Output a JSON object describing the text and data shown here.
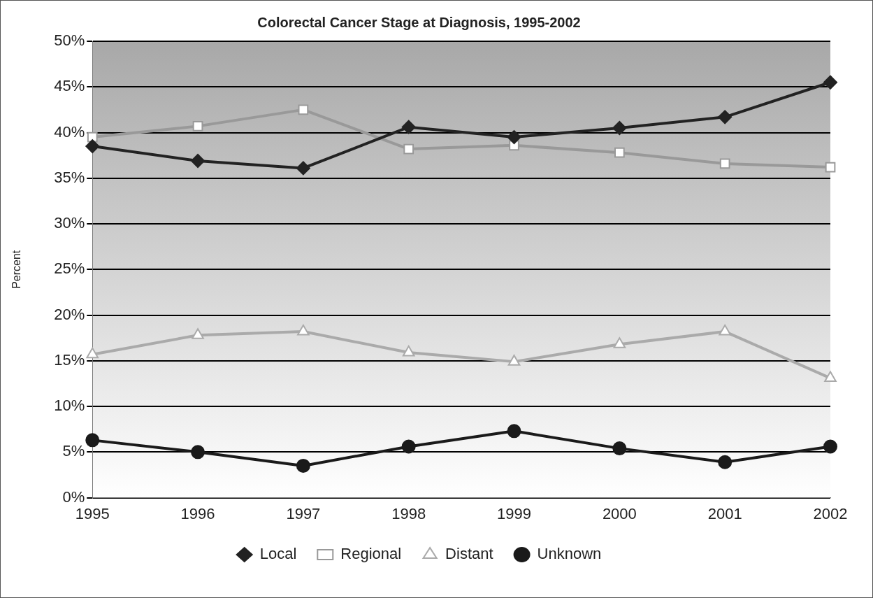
{
  "chart_data": {
    "type": "line",
    "title": "Colorectal Cancer Stage at Diagnosis, 1995-2002",
    "ylabel": "Percent",
    "categories": [
      "1995",
      "1996",
      "1997",
      "1998",
      "1999",
      "2000",
      "2001",
      "2002"
    ],
    "series": [
      {
        "name": "Local",
        "color": "#222222",
        "marker": "diamond",
        "values": [
          38.5,
          36.9,
          36.1,
          40.6,
          39.5,
          40.5,
          41.7,
          45.5
        ]
      },
      {
        "name": "Regional",
        "color": "#999999",
        "marker": "square",
        "values": [
          39.5,
          40.7,
          42.5,
          38.2,
          38.6,
          37.8,
          36.6,
          36.2
        ]
      },
      {
        "name": "Distant",
        "color": "#aaaaaa",
        "marker": "triangle",
        "values": [
          15.7,
          17.8,
          18.2,
          15.9,
          14.9,
          16.8,
          18.2,
          13.1
        ]
      },
      {
        "name": "Unknown",
        "color": "#1a1a1a",
        "marker": "circle",
        "values": [
          6.3,
          5.0,
          3.5,
          5.6,
          7.3,
          5.4,
          3.9,
          5.6
        ]
      }
    ],
    "ylim": [
      0,
      50
    ],
    "yticks": [
      {
        "value": 0,
        "label": "0%"
      },
      {
        "value": 5,
        "label": "5%"
      },
      {
        "value": 10,
        "label": "10%"
      },
      {
        "value": 15,
        "label": "15%"
      },
      {
        "value": 20,
        "label": "20%"
      },
      {
        "value": 25,
        "label": "25%"
      },
      {
        "value": 30,
        "label": "30%"
      },
      {
        "value": 35,
        "label": "35%"
      },
      {
        "value": 40,
        "label": "40%"
      },
      {
        "value": 45,
        "label": "45%"
      },
      {
        "value": 50,
        "label": "50%"
      }
    ],
    "grid": "y",
    "legend": "bottom",
    "line_style": "solid"
  }
}
